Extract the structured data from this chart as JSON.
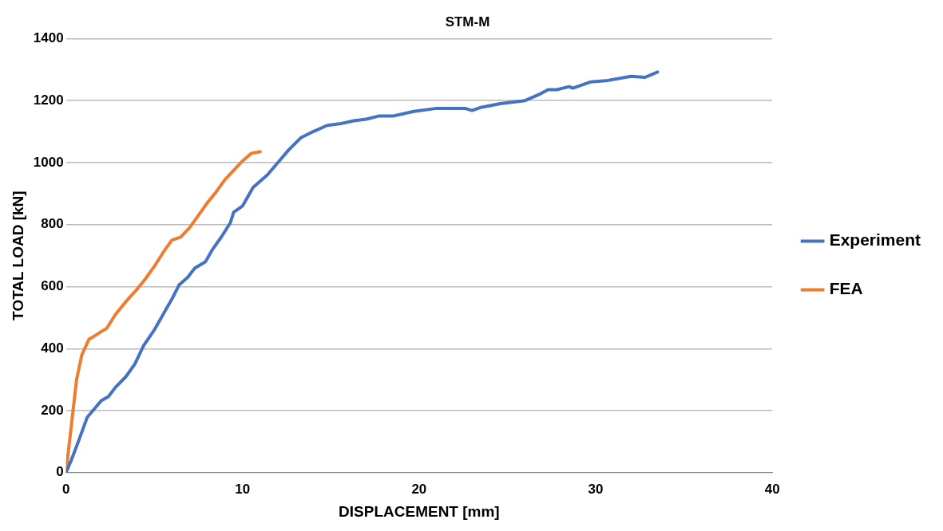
{
  "chart_data": {
    "type": "line",
    "title": "STM-M",
    "xlabel": "DISPLACEMENT [mm]",
    "ylabel": "TOTAL LOAD [kN]",
    "xlim": [
      0,
      40
    ],
    "xticks": [
      0,
      10,
      20,
      30,
      40
    ],
    "ylim": [
      0,
      1400
    ],
    "yticks": [
      0,
      200,
      400,
      600,
      800,
      1000,
      1200,
      1400
    ],
    "grid": "y",
    "legend": "right",
    "marker": "none",
    "line_style": "solid",
    "series": [
      {
        "name": "Experiment",
        "color": "#4472c4",
        "x": [
          0,
          0.3,
          0.7,
          1.2,
          1.6,
          2,
          2.4,
          2.8,
          3.4,
          3.9,
          4.4,
          5,
          5.6,
          6,
          6.4,
          6.9,
          7.3,
          7.9,
          8.3,
          8.8,
          9.3,
          9.5,
          10,
          10.6,
          11.4,
          12,
          12.6,
          13.3,
          14,
          14.8,
          15.5,
          16.3,
          17,
          17.7,
          18.5,
          19.7,
          21,
          21.6,
          22.6,
          23,
          23.5,
          24.6,
          26,
          26.8,
          27.3,
          27.8,
          28.5,
          28.7,
          29.7,
          30.7,
          32,
          32.8,
          33.5
        ],
        "values": [
          0,
          40,
          100,
          178,
          205,
          232,
          245,
          275,
          310,
          350,
          410,
          460,
          520,
          560,
          605,
          630,
          660,
          680,
          720,
          760,
          805,
          840,
          860,
          920,
          960,
          1000,
          1040,
          1080,
          1100,
          1120,
          1125,
          1135,
          1140,
          1150,
          1150,
          1165,
          1175,
          1175,
          1175,
          1168,
          1178,
          1190,
          1200,
          1220,
          1235,
          1235,
          1245,
          1240,
          1260,
          1265,
          1278,
          1275,
          1292
        ]
      },
      {
        "name": "FEA",
        "color": "#ed7d31",
        "x": [
          0,
          0.3,
          0.6,
          0.9,
          1.3,
          1.6,
          2,
          2.3,
          2.8,
          3.3,
          3.6,
          4,
          4.5,
          5,
          5.5,
          6,
          6.5,
          7,
          7.5,
          8,
          8.5,
          9,
          9.5,
          10,
          10.5,
          11
        ],
        "values": [
          0,
          150,
          300,
          380,
          430,
          440,
          455,
          465,
          510,
          545,
          565,
          590,
          625,
          665,
          710,
          750,
          760,
          790,
          830,
          870,
          905,
          945,
          975,
          1005,
          1030,
          1035
        ]
      }
    ]
  }
}
